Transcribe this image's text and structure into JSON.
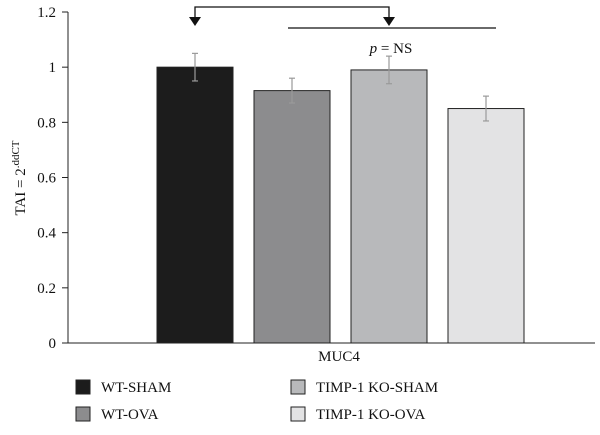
{
  "chart_data": {
    "type": "bar",
    "categories": [
      "MUC4"
    ],
    "xlabel": "MUC4",
    "ylabel_main": "TAI = 2",
    "ylabel_sup": ".ddCT",
    "ylim": [
      0,
      1.2
    ],
    "yticks": [
      "0",
      "0.2",
      "0.4",
      "0.6",
      "0.8",
      "1",
      "1.2"
    ],
    "ytick_values": [
      0,
      0.2,
      0.4,
      0.6,
      0.8,
      1.0,
      1.2
    ],
    "grid": false,
    "legend_position": "bottom",
    "series": [
      {
        "name": "WT-SHAM",
        "value": 1.0,
        "error": 0.05,
        "color": "#1c1c1c"
      },
      {
        "name": "WT-OVA",
        "value": 0.915,
        "error": 0.045,
        "color": "#8c8c8e"
      },
      {
        "name": "TIMP-1 KO-SHAM",
        "value": 0.99,
        "error": 0.05,
        "color": "#b8b9bb"
      },
      {
        "name": "TIMP-1 KO-OVA",
        "value": 0.85,
        "error": 0.045,
        "color": "#e3e3e4"
      }
    ],
    "annotation": {
      "p_label": "p",
      "p_rest": " = NS",
      "compare": [
        "WT-SHAM",
        "TIMP-1 KO-SHAM"
      ]
    }
  }
}
